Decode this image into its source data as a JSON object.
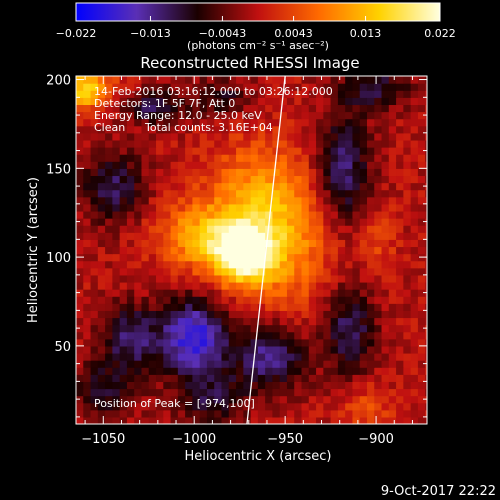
{
  "chart_data": {
    "type": "heatmap",
    "title": "Reconstructed RHESSI Image",
    "xlabel": "Heliocentric X (arcsec)",
    "ylabel": "Heliocentric Y (arcsec)",
    "xlim": [
      -1065,
      -872
    ],
    "ylim": [
      6,
      202
    ],
    "x_ticks": [
      -1050,
      -1000,
      -950,
      -900
    ],
    "y_ticks": [
      50,
      100,
      150,
      200
    ],
    "x_tick_labels": [
      "−1050",
      "−1000",
      "−950",
      "−900"
    ],
    "y_tick_labels": [
      "50",
      "100",
      "150",
      "200"
    ],
    "colorbar": {
      "range": [
        -0.022,
        0.022
      ],
      "ticks": [
        -0.022,
        -0.013,
        -0.0043,
        0.0043,
        0.013,
        0.022
      ],
      "tick_labels": [
        "−0.022",
        "−0.013",
        "−0.0043",
        "0.0043",
        "0.013",
        "0.022"
      ],
      "unit_label": "(photons cm⁻² s⁻¹ asec⁻²)",
      "colormap": [
        "#0000ff",
        "#5a2fb5",
        "#1a0000",
        "#c01010",
        "#ff6a00",
        "#ffd200",
        "#ffffe0"
      ]
    },
    "annotations": {
      "time_range": "14-Feb-2016 03:16:12.000 to 03:26:12.000",
      "detectors": "Detectors: 1F 5F 7F, Att 0",
      "energy": "Energy Range: 12.0 - 25.0 keV",
      "method": "Clean",
      "total_counts": "Total counts: 3.16E+04",
      "peak": "Position of Peak = [-974,100]"
    },
    "peak": {
      "x": -974,
      "y": 100
    },
    "limb_line": [
      {
        "x": -971,
        "y": 6
      },
      {
        "x": -950,
        "y": 202
      }
    ],
    "pixel_size_arcsec": 4,
    "sources": [
      {
        "x": -974,
        "y": 102,
        "sx": 12,
        "sy": 12,
        "amp": 0.021
      },
      {
        "x": -965,
        "y": 128,
        "sx": 20,
        "sy": 24,
        "amp": 0.012
      },
      {
        "x": -1000,
        "y": 112,
        "sx": 15,
        "sy": 13,
        "amp": 0.01
      },
      {
        "x": -945,
        "y": 100,
        "sx": 18,
        "sy": 28,
        "amp": 0.006
      },
      {
        "x": -1060,
        "y": 195,
        "sx": 7,
        "sy": 8,
        "amp": 0.014
      },
      {
        "x": -1050,
        "y": 195,
        "sx": 10,
        "sy": 8,
        "amp": 0.004
      },
      {
        "x": -1022,
        "y": 185,
        "sx": 11,
        "sy": 7,
        "amp": -0.01
      },
      {
        "x": -1000,
        "y": 55,
        "sx": 13,
        "sy": 15,
        "amp": -0.018
      },
      {
        "x": -1035,
        "y": 55,
        "sx": 11,
        "sy": 13,
        "amp": -0.011
      },
      {
        "x": -958,
        "y": 45,
        "sx": 14,
        "sy": 13,
        "amp": -0.013
      },
      {
        "x": -915,
        "y": 60,
        "sx": 10,
        "sy": 18,
        "amp": -0.011
      },
      {
        "x": -918,
        "y": 150,
        "sx": 10,
        "sy": 22,
        "amp": -0.012
      },
      {
        "x": -1045,
        "y": 140,
        "sx": 12,
        "sy": 14,
        "amp": -0.01
      },
      {
        "x": -1050,
        "y": 25,
        "sx": 12,
        "sy": 12,
        "amp": -0.008
      },
      {
        "x": -990,
        "y": 20,
        "sx": 14,
        "sy": 10,
        "amp": -0.008
      },
      {
        "x": -900,
        "y": 195,
        "sx": 14,
        "sy": 8,
        "amp": -0.009
      },
      {
        "x": -985,
        "y": 190,
        "sx": 12,
        "sy": 8,
        "amp": -0.007
      },
      {
        "x": -905,
        "y": 15,
        "sx": 10,
        "sy": 10,
        "amp": 0.005
      },
      {
        "x": -900,
        "y": 110,
        "sx": 8,
        "sy": 14,
        "amp": 0.004
      }
    ]
  },
  "footer": {
    "timestamp": "9-Oct-2017 22:22"
  }
}
